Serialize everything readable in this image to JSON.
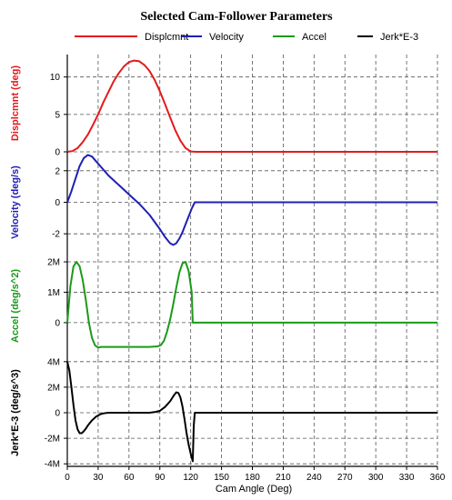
{
  "chart_data": {
    "type": "line",
    "title": "Selected Cam-Follower Parameters",
    "xlabel": "Cam Angle (Deg)",
    "xlim": [
      0,
      360
    ],
    "x_ticks": [
      "0",
      "30",
      "60",
      "90",
      "120",
      "150",
      "180",
      "210",
      "240",
      "270",
      "300",
      "330",
      "360"
    ],
    "grid": true,
    "legend_position": "top",
    "legend": [
      {
        "name": "Displcmnt",
        "color": "#e31a1c"
      },
      {
        "name": "Velocity",
        "color": "#1f1fb4"
      },
      {
        "name": "Accel",
        "color": "#1a9a1a"
      },
      {
        "name": "Jerk*E-3",
        "color": "#000000"
      }
    ],
    "panels": [
      {
        "ylabel": "Displcmnt (deg)",
        "color": "#e31a1c",
        "ylim": [
          0,
          13
        ],
        "y_ticks": [
          {
            "value": 0,
            "label": "0"
          },
          {
            "value": 5,
            "label": "5"
          },
          {
            "value": 10,
            "label": "10"
          }
        ],
        "x": [
          0,
          5,
          10,
          15,
          20,
          25,
          30,
          35,
          40,
          45,
          50,
          55,
          60,
          65,
          70,
          75,
          80,
          85,
          90,
          95,
          100,
          105,
          110,
          115,
          120,
          125,
          130,
          180,
          240,
          300,
          360
        ],
        "y": [
          0,
          0.1,
          0.5,
          1.3,
          2.3,
          3.6,
          5.0,
          6.6,
          8.0,
          9.4,
          10.5,
          11.4,
          12.0,
          12.2,
          12.1,
          11.6,
          10.8,
          9.6,
          8.1,
          6.4,
          4.6,
          2.9,
          1.5,
          0.5,
          0.05,
          0,
          0,
          0,
          0,
          0,
          0
        ]
      },
      {
        "ylabel": "Velocity (deg/s)",
        "color": "#1f1fb4",
        "ylim": [
          -3.2,
          3.2
        ],
        "y_ticks": [
          {
            "value": 2,
            "label": "2"
          },
          {
            "value": 0,
            "label": "0"
          },
          {
            "value": -2,
            "label": "-2"
          }
        ],
        "x": [
          0,
          4,
          8,
          12,
          16,
          20,
          24,
          28,
          32,
          36,
          40,
          50,
          60,
          70,
          80,
          90,
          95,
          100,
          103,
          106,
          109,
          112,
          115,
          118,
          121,
          124,
          130,
          180,
          240,
          300,
          360
        ],
        "y": [
          0,
          0.7,
          1.5,
          2.3,
          2.8,
          3.0,
          2.9,
          2.6,
          2.3,
          2.0,
          1.7,
          1.1,
          0.5,
          -0.1,
          -0.8,
          -1.7,
          -2.2,
          -2.6,
          -2.7,
          -2.6,
          -2.3,
          -1.9,
          -1.4,
          -0.9,
          -0.4,
          0,
          0,
          0,
          0,
          0,
          0
        ]
      },
      {
        "ylabel": "Accel (deg/s^2)",
        "color": "#1a9a1a",
        "ylim": [
          -1.2,
          2.3
        ],
        "y_ticks": [
          {
            "value": 2,
            "label": "2M"
          },
          {
            "value": 1,
            "label": "1M"
          },
          {
            "value": 0,
            "label": "0"
          }
        ],
        "x": [
          0,
          3,
          6,
          9,
          12,
          15,
          18,
          21,
          24,
          27,
          30,
          33,
          36,
          40,
          60,
          80,
          88,
          91,
          94,
          97,
          100,
          103,
          106,
          109,
          112,
          115,
          118,
          121,
          122,
          124,
          130,
          180,
          240,
          300,
          360
        ],
        "y": [
          0,
          1.2,
          1.85,
          2.0,
          1.85,
          1.4,
          0.75,
          0.0,
          -0.5,
          -0.75,
          -0.82,
          -0.8,
          -0.8,
          -0.8,
          -0.8,
          -0.8,
          -0.78,
          -0.74,
          -0.6,
          -0.3,
          0.1,
          0.6,
          1.15,
          1.65,
          1.95,
          2.0,
          1.7,
          1.0,
          0,
          0,
          0,
          0,
          0,
          0,
          0
        ]
      },
      {
        "ylabel": "Jerk*E-3 (deg/s^3)",
        "color": "#000000",
        "ylim": [
          -4.2,
          4.2
        ],
        "y_ticks": [
          {
            "value": 4,
            "label": "4M"
          },
          {
            "value": 2,
            "label": "2M"
          },
          {
            "value": 0,
            "label": "0"
          },
          {
            "value": -2,
            "label": "-2M"
          },
          {
            "value": -4,
            "label": "-4M"
          }
        ],
        "x": [
          0,
          2,
          4,
          6,
          8,
          10,
          12,
          14,
          16,
          18,
          20,
          24,
          28,
          32,
          36,
          40,
          60,
          80,
          85,
          90,
          95,
          100,
          104,
          106,
          108,
          110,
          112,
          114,
          116,
          118,
          120,
          122,
          123,
          124,
          130,
          180,
          240,
          300,
          360
        ],
        "y": [
          4.0,
          3.3,
          2.0,
          0.6,
          -0.6,
          -1.3,
          -1.6,
          -1.6,
          -1.45,
          -1.25,
          -1.0,
          -0.6,
          -0.3,
          -0.12,
          -0.04,
          0,
          0,
          0,
          0.05,
          0.15,
          0.45,
          0.9,
          1.4,
          1.6,
          1.55,
          1.2,
          0.5,
          -0.5,
          -1.6,
          -2.5,
          -3.2,
          -3.8,
          -1.0,
          0,
          0,
          0,
          0,
          0,
          0
        ]
      }
    ]
  }
}
